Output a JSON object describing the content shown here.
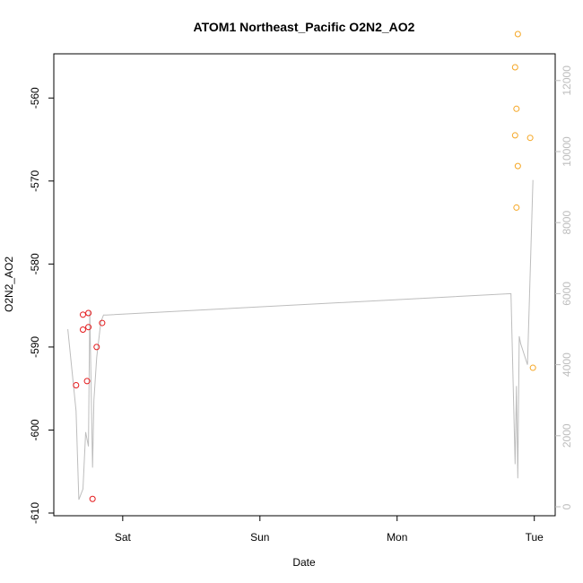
{
  "chart_data": {
    "type": "scatter",
    "title": "ATOM1 Northeast_Pacific O2N2_AO2",
    "xlabel": "Date",
    "ylabel": "O2N2_AO2",
    "x_ticks": [
      "Sat",
      "Sun",
      "Mon",
      "Tue"
    ],
    "x_tick_values": [
      1.0,
      2.0,
      3.0,
      4.0
    ],
    "xlim": [
      0.55,
      4.1
    ],
    "ylim": [
      -610,
      -555
    ],
    "y_ticks": [
      -610,
      -600,
      -590,
      -580,
      -570,
      -560
    ],
    "y2lim": [
      0,
      12500
    ],
    "y2_ticks": [
      0,
      2000,
      4000,
      6000,
      8000,
      10000,
      12000
    ],
    "grid": false,
    "colors": {
      "red_points": "#e41a1c",
      "orange_points": "#f5a623",
      "line": "#bdbdbd"
    },
    "series": [
      {
        "color": "red",
        "x": [
          0.66,
          0.71,
          0.71,
          0.74,
          0.75,
          0.75,
          0.78,
          0.81,
          0.85
        ],
        "y": [
          -594.6,
          -587.9,
          -586.1,
          -594.1,
          -587.6,
          -585.9,
          -608.3,
          -590.0,
          -587.1
        ]
      },
      {
        "color": "orange",
        "x": [
          3.86,
          3.86,
          3.87,
          3.87,
          3.88,
          3.88,
          3.97,
          3.99
        ],
        "y": [
          -564.5,
          -556.3,
          -561.3,
          -573.2,
          -552.3,
          -568.2,
          -564.8,
          -592.5
        ]
      },
      {
        "axis": "right",
        "x": [
          0.6,
          0.66,
          0.68,
          0.71,
          0.73,
          0.75,
          0.76,
          0.78,
          0.79,
          0.81,
          0.84,
          0.86,
          0.88,
          3.83,
          3.86,
          3.87,
          3.88,
          3.89,
          3.9,
          3.95,
          3.99
        ],
        "y": [
          5000,
          2700,
          200,
          500,
          2100,
          1700,
          5500,
          1100,
          3000,
          4200,
          5200,
          5400,
          5400,
          6000,
          1200,
          3400,
          800,
          4800,
          4600,
          4000,
          9200
        ]
      }
    ]
  }
}
